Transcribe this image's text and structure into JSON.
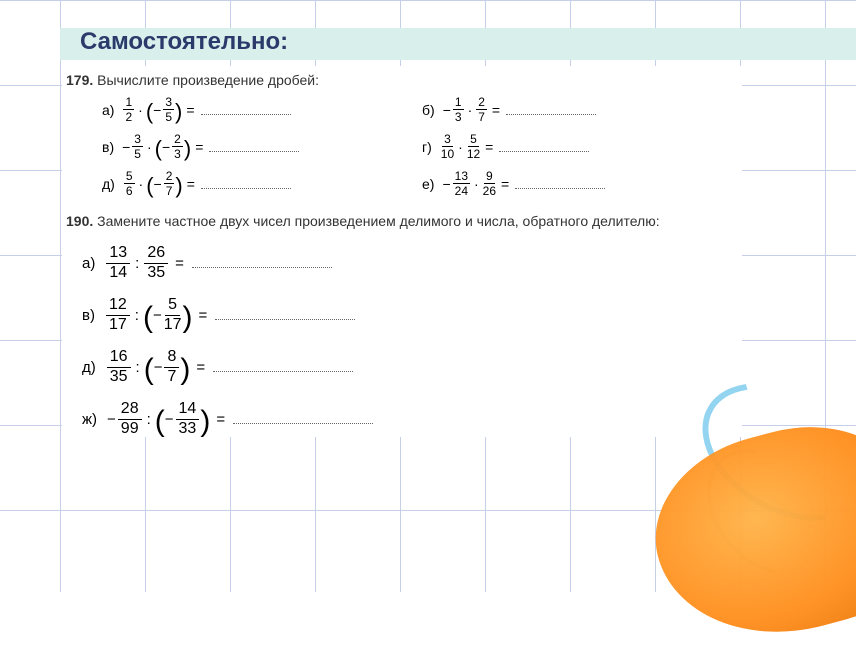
{
  "title": "Самостоятельно:",
  "ex179": {
    "num": "179.",
    "text": "Вычислите произведение дробей:",
    "items": {
      "a": {
        "label": "а)",
        "s1": "",
        "n1": "1",
        "d1": "2",
        "op": "·",
        "paren": true,
        "s2": "−",
        "n2": "3",
        "d2": "5"
      },
      "b": {
        "label": "б)",
        "s1": "−",
        "n1": "1",
        "d1": "3",
        "op": "·",
        "paren": false,
        "s2": "",
        "n2": "2",
        "d2": "7"
      },
      "v": {
        "label": "в)",
        "s1": "−",
        "n1": "3",
        "d1": "5",
        "op": "·",
        "paren": true,
        "s2": "−",
        "n2": "2",
        "d2": "3"
      },
      "g": {
        "label": "г)",
        "s1": "",
        "n1": "3",
        "d1": "10",
        "op": "·",
        "paren": false,
        "s2": "",
        "n2": "5",
        "d2": "12"
      },
      "d": {
        "label": "д)",
        "s1": "",
        "n1": "5",
        "d1": "6",
        "op": "·",
        "paren": true,
        "s2": "−",
        "n2": "2",
        "d2": "7"
      },
      "e": {
        "label": "е)",
        "s1": "−",
        "n1": "13",
        "d1": "24",
        "op": "·",
        "paren": false,
        "s2": "",
        "n2": "9",
        "d2": "26"
      }
    }
  },
  "ex190": {
    "num": "190.",
    "text": "Замените частное двух чисел произведением делимого и числа, обратного делителю:",
    "items": {
      "a": {
        "label": "а)",
        "s1": "",
        "n1": "13",
        "d1": "14",
        "op": ":",
        "paren": false,
        "s2": "",
        "n2": "26",
        "d2": "35"
      },
      "v": {
        "label": "в)",
        "s1": "",
        "n1": "12",
        "d1": "17",
        "op": ":",
        "paren": true,
        "s2": "−",
        "n2": "5",
        "d2": "17"
      },
      "d": {
        "label": "д)",
        "s1": "",
        "n1": "16",
        "d1": "35",
        "op": ":",
        "paren": true,
        "s2": "−",
        "n2": "8",
        "d2": "7"
      },
      "zh": {
        "label": "ж)",
        "s1": "−",
        "n1": "28",
        "d1": "99",
        "op": ":",
        "paren": true,
        "s2": "−",
        "n2": "14",
        "d2": "33"
      }
    }
  },
  "colors": {
    "grid": "#c5d0e8",
    "band": "#d8efec",
    "title": "#2a3a6a",
    "orange1": "#ffb347",
    "orange2": "#ff8c1a",
    "arc_blue": "#4db8e8"
  }
}
